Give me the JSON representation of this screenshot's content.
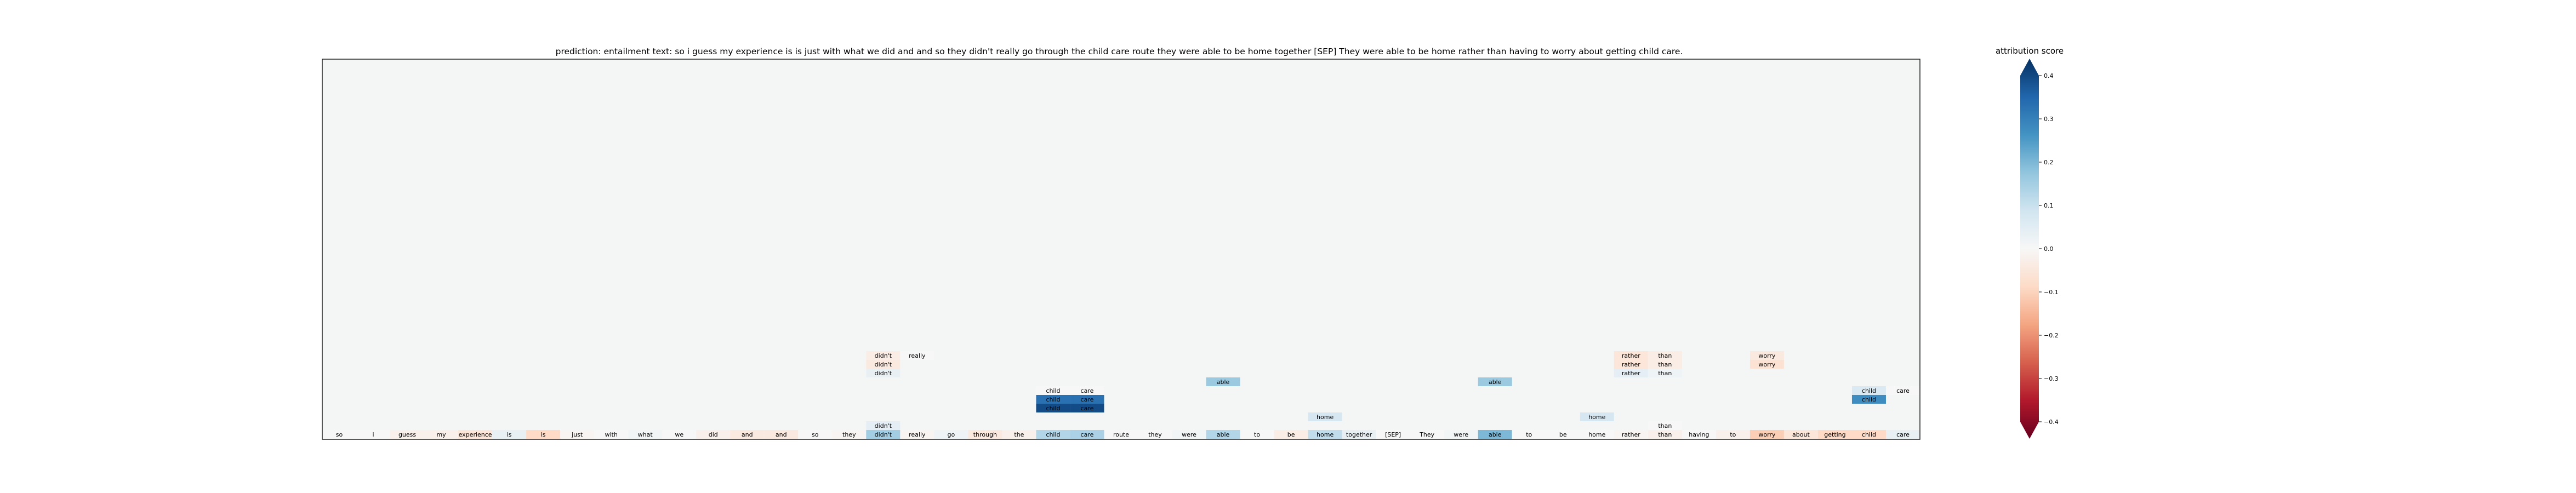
{
  "title": "prediction:  entailment     text:  so i guess my experience is is just with what we did and and so they didn't really go through the child care route they were able to be home together [SEP] They were able to be home rather than having to worry about getting child care.",
  "colorbar": {
    "label": "attribution score",
    "ticks": [
      "0.4",
      "0.3",
      "0.2",
      "0.1",
      "0.0",
      "−0.1",
      "−0.2",
      "−0.3",
      "−0.4"
    ],
    "tick_values": [
      0.4,
      0.3,
      0.2,
      0.1,
      0.0,
      -0.1,
      -0.2,
      -0.3,
      -0.4
    ],
    "min": -0.4,
    "max": 0.4,
    "colormap": "RdBu"
  },
  "colors": {
    "background": "#f4f6f6",
    "frame": "#222222",
    "cmap_stops": [
      "#67001f",
      "#b2182b",
      "#d6604d",
      "#f4a582",
      "#fddbc7",
      "#f7f7f7",
      "#d1e5f0",
      "#92c5de",
      "#4393c3",
      "#2166ac",
      "#053061"
    ]
  },
  "chart_data": {
    "type": "heatmap",
    "title": "prediction:  entailment     text:  so i guess my experience is is just with what we did and and so they didn't really go through the child care route they were able to be home together [SEP] They were able to be home rather than having to worry about getting child care.",
    "tokens": [
      "so",
      "i",
      "guess",
      "my",
      "experience",
      "is",
      "is",
      "just",
      "with",
      "what",
      "we",
      "did",
      "and",
      "and",
      "so",
      "they",
      "didn't",
      "really",
      "go",
      "through",
      "the",
      "child",
      "care",
      "route",
      "they",
      "were",
      "able",
      "to",
      "be",
      "home",
      "together",
      "[SEP]",
      "They",
      "were",
      "able",
      "to",
      "be",
      "home",
      "rather",
      "than",
      "having",
      "to",
      "worry",
      "about",
      "getting",
      "child",
      "care"
    ],
    "token_scores": [
      0.0,
      0.0,
      -0.02,
      -0.02,
      -0.05,
      0.03,
      -0.08,
      -0.01,
      0.0,
      0.01,
      0.0,
      -0.02,
      -0.04,
      -0.04,
      0.0,
      -0.01,
      0.14,
      -0.01,
      0.02,
      -0.04,
      -0.02,
      0.12,
      0.13,
      0.0,
      0.0,
      0.01,
      0.12,
      0.0,
      -0.03,
      0.1,
      0.03,
      0.0,
      0.0,
      0.01,
      0.18,
      0.0,
      0.0,
      0.0,
      -0.01,
      -0.02,
      0.0,
      -0.02,
      -0.1,
      -0.05,
      -0.08,
      -0.08,
      0.03
    ],
    "cells": [
      {
        "token_index": 16,
        "row": 9,
        "label": "didn't",
        "value": -0.03
      },
      {
        "token_index": 17,
        "row": 9,
        "label": "really",
        "value": 0.0
      },
      {
        "token_index": 16,
        "row": 8,
        "label": "didn't",
        "value": -0.04
      },
      {
        "token_index": 16,
        "row": 7,
        "label": "didn't",
        "value": 0.03
      },
      {
        "token_index": 38,
        "row": 9,
        "label": "rather",
        "value": -0.05
      },
      {
        "token_index": 39,
        "row": 9,
        "label": "than",
        "value": -0.03
      },
      {
        "token_index": 38,
        "row": 8,
        "label": "rather",
        "value": -0.05
      },
      {
        "token_index": 39,
        "row": 8,
        "label": "than",
        "value": -0.03
      },
      {
        "token_index": 38,
        "row": 7,
        "label": "rather",
        "value": 0.04
      },
      {
        "token_index": 39,
        "row": 7,
        "label": "than",
        "value": 0.02
      },
      {
        "token_index": 42,
        "row": 9,
        "label": "worry",
        "value": -0.04
      },
      {
        "token_index": 42,
        "row": 8,
        "label": "worry",
        "value": -0.06
      },
      {
        "token_index": 26,
        "row": 6,
        "label": "able",
        "value": 0.15
      },
      {
        "token_index": 34,
        "row": 6,
        "label": "able",
        "value": 0.15
      },
      {
        "token_index": 21,
        "row": 5,
        "label": "child",
        "value": 0.0
      },
      {
        "token_index": 22,
        "row": 5,
        "label": "care",
        "value": 0.0
      },
      {
        "token_index": 21,
        "row": 4,
        "label": "child",
        "value": 0.3
      },
      {
        "token_index": 22,
        "row": 4,
        "label": "care",
        "value": 0.3
      },
      {
        "token_index": 21,
        "row": 3,
        "label": "child",
        "value": 0.36
      },
      {
        "token_index": 22,
        "row": 3,
        "label": "care",
        "value": 0.36
      },
      {
        "token_index": 45,
        "row": 5,
        "label": "child",
        "value": 0.06
      },
      {
        "token_index": 46,
        "row": 5,
        "label": "care",
        "value": 0.0
      },
      {
        "token_index": 45,
        "row": 4,
        "label": "child",
        "value": 0.25
      },
      {
        "token_index": 29,
        "row": 2,
        "label": "home",
        "value": 0.07
      },
      {
        "token_index": 37,
        "row": 2,
        "label": "home",
        "value": 0.07
      },
      {
        "token_index": 39,
        "row": 1,
        "label": "than",
        "value": 0.0
      },
      {
        "token_index": 16,
        "row": 1,
        "label": "didn't",
        "value": 0.04
      }
    ]
  }
}
